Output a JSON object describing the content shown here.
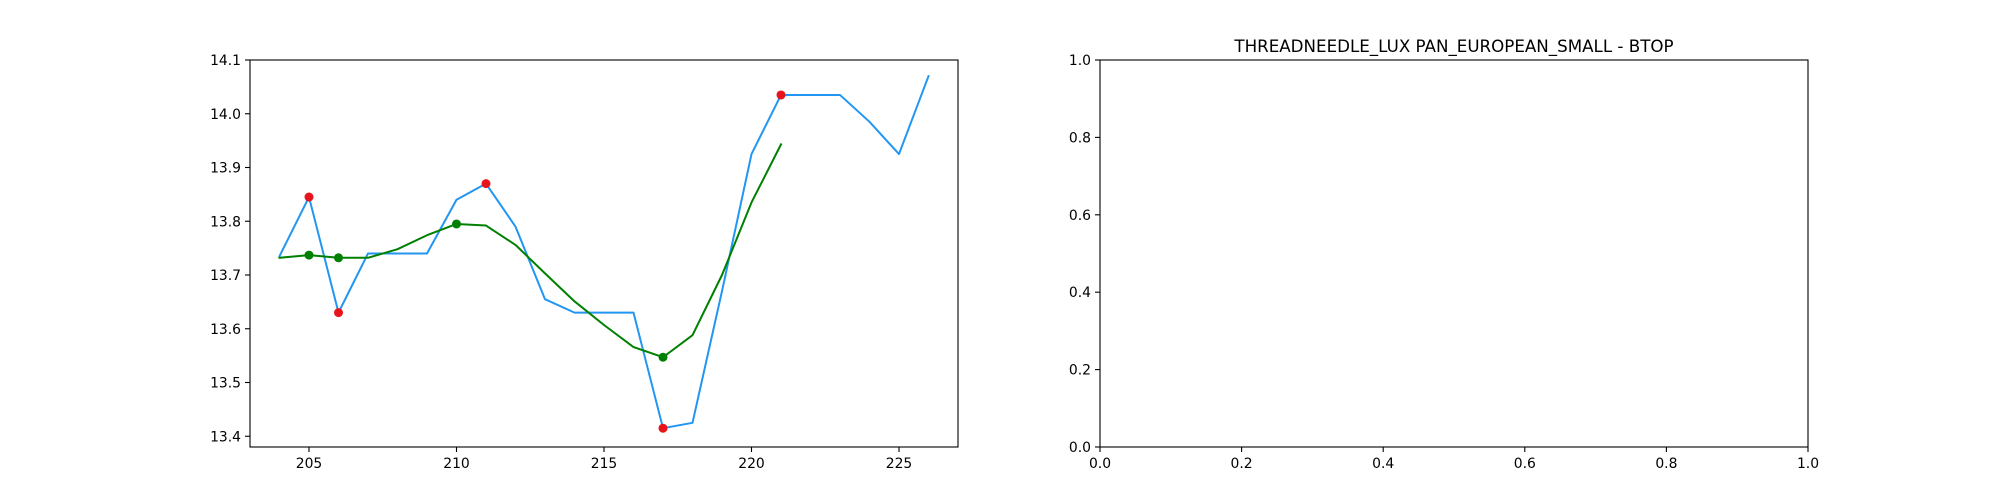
{
  "chart_data": [
    {
      "type": "line",
      "title": "",
      "xlabel": "",
      "ylabel": "",
      "xlim": [
        203.0,
        227.0
      ],
      "ylim": [
        13.38,
        14.1
      ],
      "xticks": [
        205,
        210,
        215,
        220,
        225
      ],
      "yticks": [
        13.4,
        13.5,
        13.6,
        13.7,
        13.8,
        13.9,
        14.0,
        14.1
      ],
      "ytick_labels": [
        "13.4",
        "13.5",
        "13.6",
        "13.7",
        "13.8",
        "13.9",
        "14.0",
        "14.1"
      ],
      "grid": false,
      "series": [
        {
          "kind": "line",
          "color": "#2196f3",
          "x": [
            204,
            205,
            206,
            207,
            208,
            209,
            210,
            211,
            212,
            213,
            214,
            215,
            216,
            217,
            218,
            219,
            220,
            221,
            222,
            223,
            224,
            225,
            226
          ],
          "y": [
            13.735,
            13.845,
            13.63,
            13.74,
            13.74,
            13.74,
            13.84,
            13.87,
            13.79,
            13.655,
            13.63,
            13.63,
            13.63,
            13.415,
            13.425,
            13.67,
            13.925,
            14.035,
            14.035,
            14.035,
            13.985,
            13.925,
            14.07
          ]
        },
        {
          "kind": "line",
          "color": "#008000",
          "x": [
            204,
            205,
            206,
            207,
            208,
            209,
            210,
            211,
            212,
            213,
            214,
            215,
            216,
            217,
            218,
            219,
            220,
            221
          ],
          "y": [
            13.732,
            13.737,
            13.732,
            13.732,
            13.748,
            13.774,
            13.795,
            13.792,
            13.756,
            13.703,
            13.651,
            13.607,
            13.566,
            13.547,
            13.588,
            13.7,
            13.835,
            13.943
          ]
        },
        {
          "kind": "scatter",
          "color": "#e8141c",
          "x": [
            205,
            206,
            211,
            217,
            221
          ],
          "y": [
            13.845,
            13.63,
            13.87,
            13.415,
            14.035
          ]
        },
        {
          "kind": "scatter",
          "color": "#008000",
          "x": [
            205,
            206,
            210,
            217
          ],
          "y": [
            13.737,
            13.732,
            13.795,
            13.547
          ]
        }
      ]
    },
    {
      "type": "line",
      "title": "THREADNEEDLE_LUX PAN_EUROPEAN_SMALL - BTOP",
      "xlabel": "",
      "ylabel": "",
      "xlim": [
        0.0,
        1.0
      ],
      "ylim": [
        0.0,
        1.0
      ],
      "xticks": [
        0.0,
        0.2,
        0.4,
        0.6,
        0.8,
        1.0
      ],
      "xtick_labels": [
        "0.0",
        "0.2",
        "0.4",
        "0.6",
        "0.8",
        "1.0"
      ],
      "yticks": [
        0.0,
        0.2,
        0.4,
        0.6,
        0.8,
        1.0
      ],
      "ytick_labels": [
        "0.0",
        "0.2",
        "0.4",
        "0.6",
        "0.8",
        "1.0"
      ],
      "grid": false,
      "series": []
    }
  ]
}
